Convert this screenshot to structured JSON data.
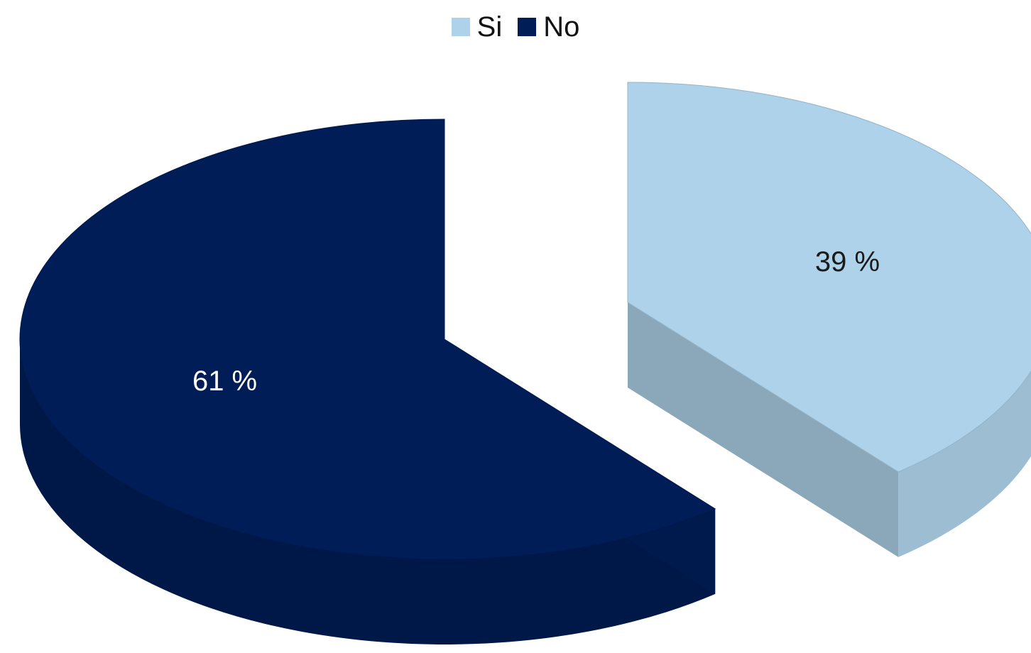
{
  "chart_data": {
    "type": "pie",
    "categories": [
      "Si",
      "No"
    ],
    "values": [
      39,
      61
    ],
    "value_labels": [
      "39 %",
      "61 %"
    ],
    "colors": [
      "#aed2ea",
      "#001d57"
    ],
    "style": "3d-exploded",
    "legend": {
      "placement": "top-center",
      "entries": [
        "Si",
        "No"
      ]
    }
  }
}
